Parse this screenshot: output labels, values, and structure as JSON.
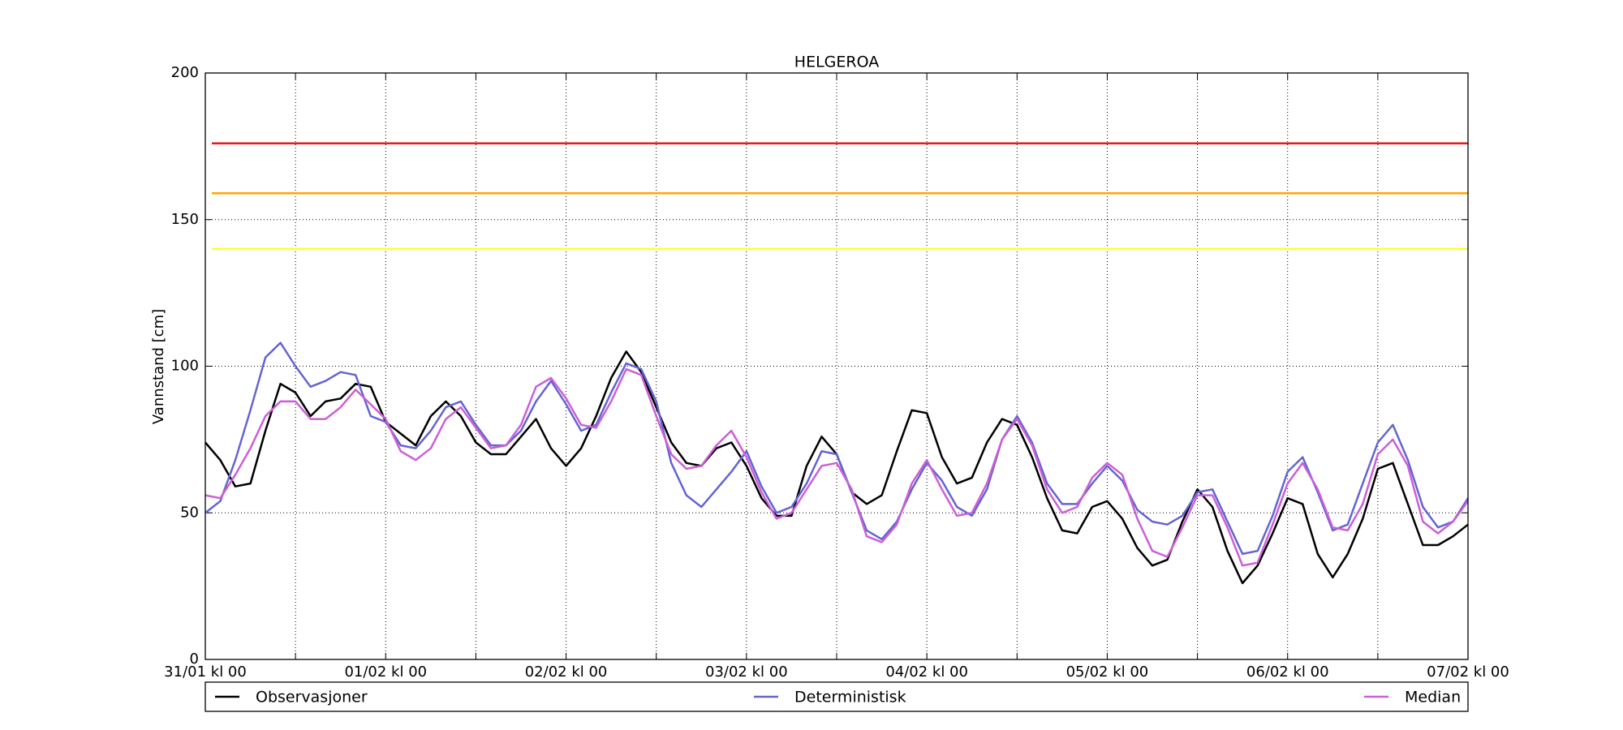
{
  "chart_data": {
    "type": "line",
    "title": "HELGEROA",
    "y_label": "Vannstand [cm]",
    "x": [
      0,
      2,
      4,
      6,
      8,
      10,
      12,
      14,
      16,
      18,
      20,
      22,
      24,
      26,
      28,
      30,
      32,
      34,
      36,
      38,
      40,
      42,
      44,
      46,
      48,
      50,
      52,
      54,
      56,
      58,
      60,
      62,
      64,
      66,
      68,
      70,
      72,
      74,
      76,
      78,
      80,
      82,
      84,
      86,
      88,
      90,
      92,
      94,
      96,
      98,
      100,
      102,
      104,
      106,
      108,
      110,
      112,
      114,
      116,
      118,
      120,
      122,
      124,
      126,
      128,
      130,
      132,
      134,
      136,
      138,
      140,
      142,
      144,
      146,
      148,
      150,
      152,
      154,
      156,
      158,
      160,
      162,
      164,
      166,
      168
    ],
    "series": [
      {
        "name": "Observasjoner",
        "color": "#000000",
        "values": [
          74,
          68,
          59,
          60,
          78,
          94,
          91,
          83,
          88,
          89,
          94,
          93,
          81,
          77,
          73,
          83,
          88,
          83,
          74,
          70,
          70,
          76,
          82,
          72,
          66,
          72,
          83,
          96,
          105,
          98,
          86,
          74,
          67,
          66,
          72,
          74,
          66,
          55,
          49,
          49,
          66,
          76,
          70,
          57,
          53,
          56,
          71,
          85,
          84,
          69,
          60,
          62,
          74,
          82,
          80,
          69,
          55,
          44,
          43,
          52,
          54,
          48,
          38,
          32,
          34,
          47,
          58,
          52,
          37,
          26,
          32,
          43,
          55,
          53,
          36,
          28,
          36,
          48,
          65,
          67,
          53,
          39,
          39,
          42,
          46
        ]
      },
      {
        "name": "Deterministisk",
        "color": "#6464d2",
        "values": [
          50,
          54,
          68,
          85,
          103,
          108,
          100,
          93,
          95,
          98,
          97,
          83,
          81,
          73,
          72,
          78,
          86,
          88,
          80,
          73,
          73,
          78,
          88,
          95,
          87,
          78,
          80,
          91,
          101,
          99,
          88,
          67,
          56,
          52,
          58,
          64,
          71,
          59,
          50,
          52,
          60,
          71,
          70,
          57,
          44,
          41,
          47,
          58,
          67,
          61,
          52,
          49,
          58,
          75,
          83,
          74,
          60,
          53,
          53,
          60,
          66,
          61,
          51,
          47,
          46,
          49,
          57,
          58,
          47,
          36,
          37,
          49,
          64,
          69,
          57,
          44,
          46,
          60,
          74,
          80,
          68,
          52,
          45,
          47,
          55
        ]
      },
      {
        "name": "Median",
        "color": "#cc5fd6",
        "values": [
          56,
          55,
          63,
          72,
          83,
          88,
          88,
          82,
          82,
          86,
          92,
          87,
          82,
          71,
          68,
          72,
          82,
          86,
          79,
          72,
          73,
          80,
          93,
          96,
          89,
          80,
          79,
          88,
          99,
          97,
          83,
          70,
          65,
          66,
          73,
          78,
          69,
          57,
          48,
          50,
          58,
          66,
          67,
          58,
          42,
          40,
          46,
          60,
          68,
          58,
          49,
          50,
          60,
          75,
          82,
          73,
          58,
          50,
          52,
          62,
          67,
          63,
          48,
          37,
          35,
          45,
          56,
          56,
          45,
          32,
          33,
          46,
          60,
          67,
          58,
          45,
          44,
          53,
          70,
          75,
          66,
          47,
          43,
          47,
          54
        ]
      }
    ],
    "reference_lines": [
      {
        "value": 176,
        "color": "#e41a1c"
      },
      {
        "value": 159,
        "color": "#ffa500"
      },
      {
        "value": 140,
        "color": "#ffff33"
      }
    ],
    "xlim": [
      0,
      168
    ],
    "xticks": [
      {
        "value": 0,
        "label": "31/01 kl 00"
      },
      {
        "value": 12,
        "label": null
      },
      {
        "value": 24,
        "label": "01/02 kl 00"
      },
      {
        "value": 36,
        "label": null
      },
      {
        "value": 48,
        "label": "02/02 kl 00"
      },
      {
        "value": 60,
        "label": null
      },
      {
        "value": 72,
        "label": "03/02 kl 00"
      },
      {
        "value": 84,
        "label": null
      },
      {
        "value": 96,
        "label": "04/02 kl 00"
      },
      {
        "value": 108,
        "label": null
      },
      {
        "value": 120,
        "label": "05/02 kl 00"
      },
      {
        "value": 132,
        "label": null
      },
      {
        "value": 144,
        "label": "06/02 kl 00"
      },
      {
        "value": 156,
        "label": null
      },
      {
        "value": 168,
        "label": "07/02 kl 00"
      }
    ],
    "ylim": [
      0,
      200
    ],
    "yticks": [
      0,
      50,
      100,
      150,
      200
    ],
    "grid": true,
    "legend": "bottom"
  }
}
